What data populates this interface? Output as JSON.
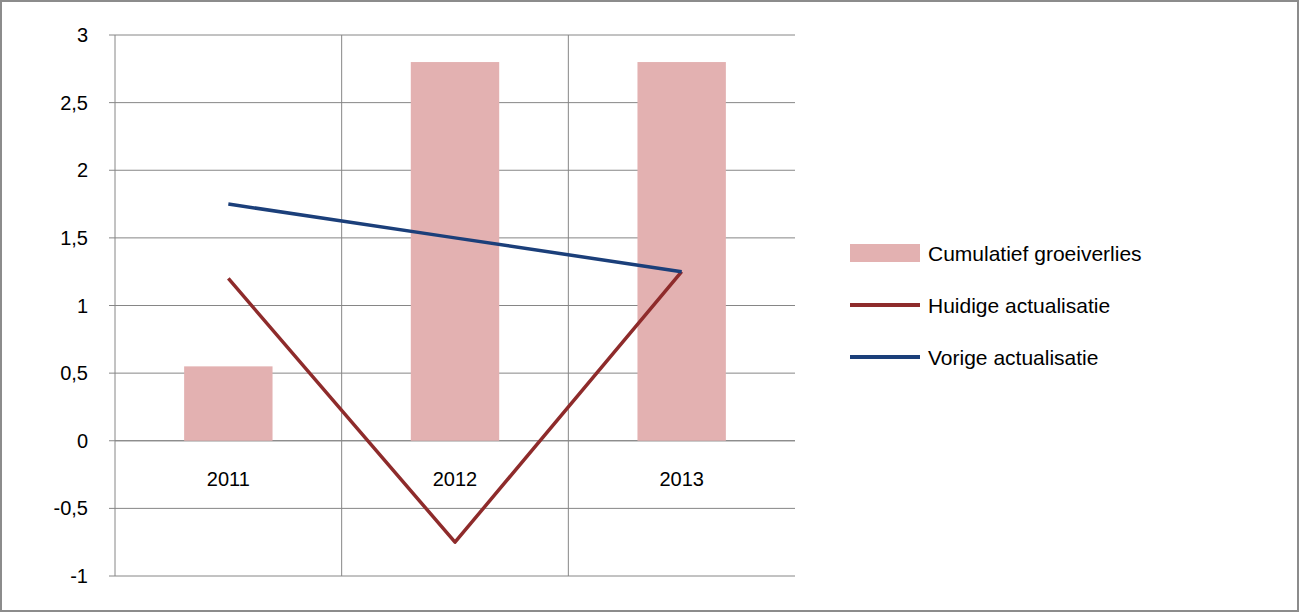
{
  "chart_data": {
    "type": "bar",
    "categories": [
      "2011",
      "2012",
      "2013"
    ],
    "series": [
      {
        "name": "Cumulatief groeiverlies",
        "type": "bar",
        "color": "#e3b1b1",
        "values": [
          0.55,
          2.8,
          2.8
        ]
      },
      {
        "name": "Huidige actualisatie",
        "type": "line",
        "color": "#8e2b2b",
        "values": [
          1.2,
          -0.75,
          1.25
        ]
      },
      {
        "name": "Vorige actualisatie",
        "type": "line",
        "color": "#1b3f7a",
        "values": [
          1.75,
          1.5,
          1.25
        ]
      }
    ],
    "ylim": [
      -1,
      3
    ],
    "yticks": [
      -1,
      {
        "value": -0.5,
        "label": "-0,5"
      },
      0,
      {
        "value": 0.5,
        "label": "0,5"
      },
      1,
      {
        "value": 1.5,
        "label": "1,5"
      },
      2,
      {
        "value": 2.5,
        "label": "2,5"
      },
      3
    ],
    "grid": true,
    "legend": "right"
  }
}
